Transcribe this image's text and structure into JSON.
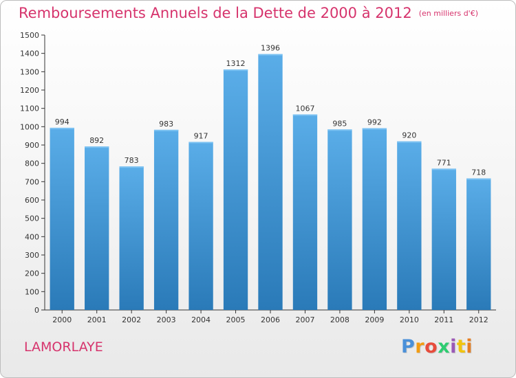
{
  "header": {
    "title": "Remboursements Annuels de la Dette de 2000 à 2012",
    "unit": "(en milliers d'€)"
  },
  "entity": "LAMORLAYE",
  "logo": {
    "letters": [
      "P",
      "r",
      "o",
      "x",
      "i",
      "t",
      "i"
    ],
    "colors": [
      "#4a90d9",
      "#f39c12",
      "#e74c3c",
      "#2ecc71",
      "#9b59b6",
      "#f1c40f",
      "#e67e22"
    ]
  },
  "colors": {
    "bar_top": "#5aade8",
    "bar_bottom": "#2a7ab8",
    "title": "#d6336c",
    "axis": "#333333"
  },
  "chart_data": {
    "type": "bar",
    "title": "Remboursements Annuels de la Dette de 2000 à 2012",
    "xlabel": "",
    "ylabel": "",
    "categories": [
      "2000",
      "2001",
      "2002",
      "2003",
      "2004",
      "2005",
      "2006",
      "2007",
      "2008",
      "2009",
      "2010",
      "2011",
      "2012"
    ],
    "values": [
      994,
      892,
      783,
      983,
      917,
      1312,
      1396,
      1067,
      985,
      992,
      920,
      771,
      718
    ],
    "ylim": [
      0,
      1500
    ],
    "yticks": [
      0,
      100,
      200,
      300,
      400,
      500,
      600,
      700,
      800,
      900,
      1000,
      1100,
      1200,
      1300,
      1400,
      1500
    ],
    "grid": false,
    "legend": "none"
  }
}
